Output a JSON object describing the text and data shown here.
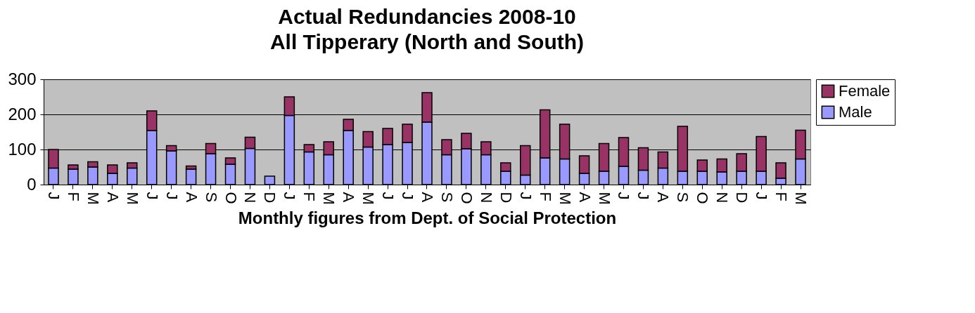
{
  "chart_data": {
    "type": "bar",
    "title": "Actual Redundancies 2008-10",
    "subtitle": "All Tipperary (North and South)",
    "xlabel": "Monthly figures from Dept. of Social Protection",
    "categories": [
      "J",
      "F",
      "M",
      "A",
      "M",
      "J",
      "J",
      "A",
      "S",
      "O",
      "N",
      "D",
      "J",
      "F",
      "M",
      "A",
      "M",
      "J",
      "J",
      "A",
      "S",
      "O",
      "N",
      "D",
      "J",
      "F",
      "M",
      "A",
      "M",
      "J",
      "J",
      "A",
      "S",
      "O",
      "N",
      "D",
      "J",
      "F",
      "M"
    ],
    "stacked": true,
    "series": [
      {
        "name": "Male",
        "color": "#9999ff",
        "values": [
          47,
          44,
          50,
          32,
          47,
          154,
          96,
          44,
          88,
          58,
          103,
          24,
          197,
          93,
          85,
          154,
          107,
          114,
          120,
          178,
          85,
          102,
          85,
          38,
          27,
          76,
          73,
          32,
          38,
          52,
          41,
          47,
          38,
          38,
          36,
          38,
          38,
          18,
          73
        ]
      },
      {
        "name": "Female",
        "color": "#993366",
        "values": [
          53,
          12,
          15,
          24,
          15,
          56,
          15,
          9,
          29,
          18,
          32,
          null,
          53,
          21,
          37,
          32,
          44,
          46,
          52,
          84,
          43,
          44,
          37,
          24,
          84,
          137,
          99,
          50,
          79,
          82,
          64,
          46,
          128,
          32,
          37,
          50,
          99,
          44,
          82
        ]
      }
    ],
    "ylim": [
      0,
      300
    ],
    "yticks": [
      0,
      100,
      200,
      300
    ],
    "grid": "y",
    "legend": "right"
  }
}
